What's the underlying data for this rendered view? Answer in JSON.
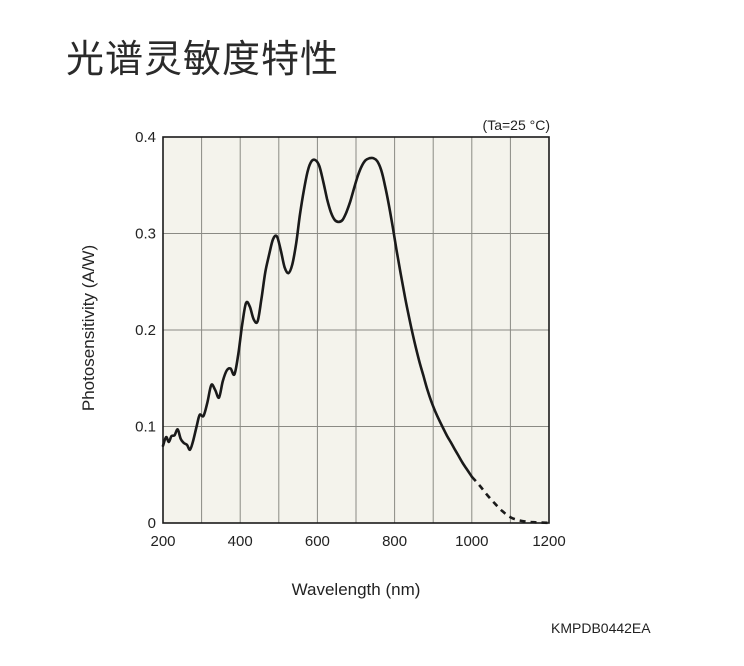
{
  "page": {
    "title": "光谱灵敏度特性",
    "code": "KMPDB0442EA"
  },
  "chart_data": {
    "type": "line",
    "annotation": "(Ta=25 °C)",
    "xlabel": "Wavelength (nm)",
    "ylabel": "Photosensitivity (A/W)",
    "xlim": [
      200,
      1200
    ],
    "ylim": [
      0,
      0.4
    ],
    "x_ticks": [
      200,
      400,
      600,
      800,
      1000,
      1200
    ],
    "y_ticks": [
      0,
      0.1,
      0.2,
      0.3,
      0.4
    ],
    "y_tick_labels": [
      "0",
      "0.1",
      "0.2",
      "0.3",
      "0.4"
    ],
    "grid": true,
    "background": "#f4f3ec",
    "line_color": "#1a1a1a",
    "series": [
      {
        "style": "solid",
        "x": [
          200,
          208,
          215,
          222,
          230,
          238,
          246,
          254,
          262,
          270,
          278,
          287,
          295,
          305,
          315,
          325,
          335,
          345,
          355,
          365,
          375,
          385,
          395,
          405,
          415,
          425,
          435,
          445,
          455,
          465,
          475,
          485,
          495,
          505,
          515,
          525,
          535,
          545,
          555,
          565,
          575,
          585,
          595,
          605,
          615,
          625,
          635,
          645,
          655,
          665,
          675,
          685,
          695,
          705,
          715,
          725,
          735,
          745,
          755,
          765,
          775,
          785,
          795,
          805,
          815,
          825,
          835,
          845,
          855,
          865,
          875,
          885,
          895,
          905,
          915,
          925,
          935,
          945,
          955,
          965,
          975,
          985,
          995,
          1000
        ],
        "y": [
          0.08,
          0.089,
          0.084,
          0.09,
          0.091,
          0.097,
          0.087,
          0.083,
          0.081,
          0.076,
          0.085,
          0.1,
          0.112,
          0.111,
          0.125,
          0.143,
          0.138,
          0.13,
          0.147,
          0.158,
          0.16,
          0.154,
          0.175,
          0.205,
          0.228,
          0.224,
          0.211,
          0.209,
          0.232,
          0.26,
          0.278,
          0.294,
          0.297,
          0.283,
          0.265,
          0.259,
          0.268,
          0.29,
          0.32,
          0.345,
          0.365,
          0.375,
          0.376,
          0.37,
          0.354,
          0.336,
          0.322,
          0.314,
          0.312,
          0.314,
          0.322,
          0.333,
          0.347,
          0.36,
          0.37,
          0.376,
          0.378,
          0.378,
          0.375,
          0.366,
          0.35,
          0.33,
          0.307,
          0.283,
          0.26,
          0.238,
          0.218,
          0.199,
          0.182,
          0.166,
          0.152,
          0.138,
          0.126,
          0.116,
          0.107,
          0.099,
          0.091,
          0.084,
          0.077,
          0.07,
          0.063,
          0.057,
          0.051,
          0.048
        ]
      },
      {
        "style": "dashed",
        "x": [
          1000,
          1020,
          1040,
          1060,
          1080,
          1100,
          1120,
          1140,
          1160,
          1180,
          1200
        ],
        "y": [
          0.048,
          0.039,
          0.029,
          0.02,
          0.012,
          0.006,
          0.003,
          0.0015,
          0.0008,
          0.0004,
          0.0002
        ]
      }
    ]
  }
}
